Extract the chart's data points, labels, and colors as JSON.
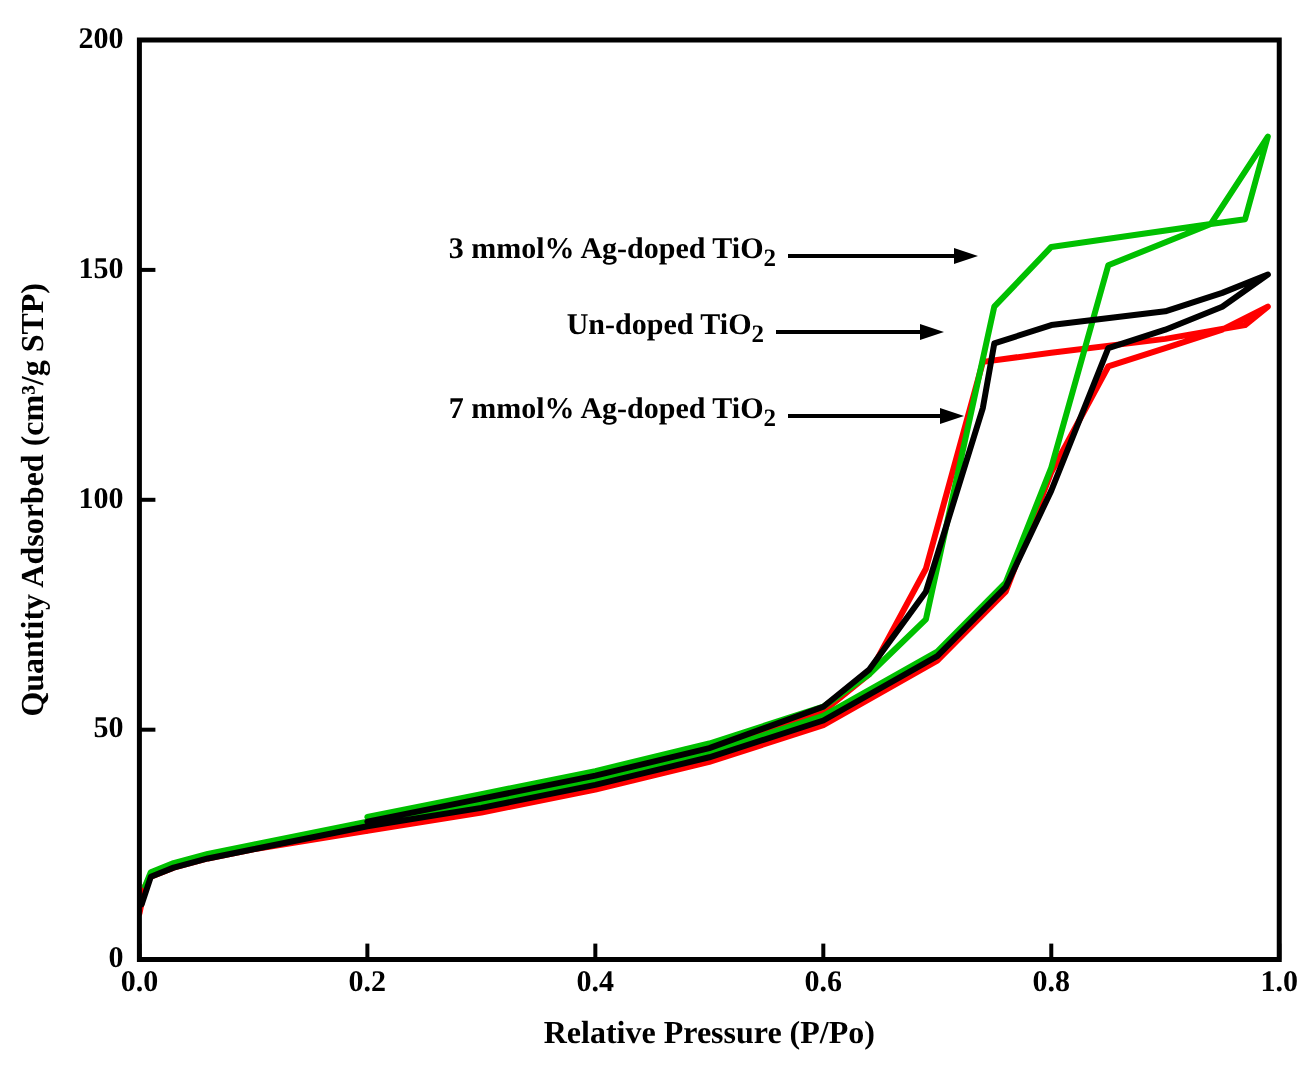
{
  "chart_data": {
    "type": "line",
    "xlabel": "Relative Pressure (P/Po)",
    "ylabel": "Quantity Adsorbed (cm³/g STP)",
    "xlim": [
      0,
      1
    ],
    "ylim": [
      0,
      200
    ],
    "xticks": [
      {
        "value": 0,
        "label": "0.0"
      },
      {
        "value": 0.2,
        "label": "0.2"
      },
      {
        "value": 0.4,
        "label": "0.4"
      },
      {
        "value": 0.6,
        "label": "0.6"
      },
      {
        "value": 0.8,
        "label": "0.8"
      },
      {
        "value": 1,
        "label": "1.0"
      }
    ],
    "yticks": [
      0,
      50,
      100,
      150,
      200
    ],
    "grid": false,
    "legend": false,
    "marker": "none",
    "line_style": "solid",
    "series": [
      {
        "color": "#000000",
        "x": [
          0.002,
          0.01,
          0.03,
          0.06,
          0.1,
          0.2,
          0.3,
          0.4,
          0.5,
          0.6,
          0.7,
          0.76,
          0.8,
          0.85,
          0.9,
          0.95,
          0.99,
          0.95,
          0.9,
          0.8,
          0.75,
          0.74,
          0.69,
          0.64,
          0.6,
          0.5,
          0.4,
          0.3,
          0.2
        ],
        "values": [
          12,
          18,
          20,
          22,
          24,
          29,
          33,
          38,
          44,
          52,
          66,
          81,
          102,
          133,
          137,
          142,
          149,
          145,
          141,
          138,
          134,
          120,
          80,
          63,
          55,
          46,
          40,
          35,
          30
        ]
      },
      {
        "color": "#00c000",
        "x": [
          0.005,
          0.01,
          0.03,
          0.06,
          0.1,
          0.2,
          0.3,
          0.4,
          0.5,
          0.6,
          0.7,
          0.76,
          0.8,
          0.85,
          0.94,
          0.99,
          0.97,
          0.94,
          0.8,
          0.75,
          0.69,
          0.64,
          0.6,
          0.5,
          0.4,
          0.3,
          0.2
        ],
        "values": [
          16,
          19,
          21,
          23,
          25,
          30,
          34,
          39,
          45,
          53,
          67,
          82,
          107,
          151,
          160,
          179,
          161,
          160,
          155,
          142,
          74,
          62,
          55,
          47,
          41,
          36,
          31
        ]
      },
      {
        "color": "#ff0000",
        "x": [
          0,
          0.005,
          0.01,
          0.03,
          0.06,
          0.1,
          0.2,
          0.3,
          0.4,
          0.5,
          0.6,
          0.7,
          0.76,
          0.8,
          0.85,
          0.9,
          0.95,
          0.99,
          0.97,
          0.9,
          0.8,
          0.74,
          0.69,
          0.64,
          0.6,
          0.5,
          0.4,
          0.3,
          0.2
        ],
        "values": [
          10,
          16,
          18,
          20,
          22,
          24,
          28,
          32,
          37,
          43,
          51,
          65,
          80,
          106,
          129,
          133,
          137,
          142,
          138,
          135,
          132,
          130,
          85,
          62,
          54,
          45,
          39,
          33,
          28
        ]
      }
    ],
    "annotations": [
      "3 mmol% Ag-doped TiO$_{2}$",
      "Un-doped TiO$_{2}$",
      "7 mmol% Ag-doped TiO$_{2}$"
    ]
  }
}
